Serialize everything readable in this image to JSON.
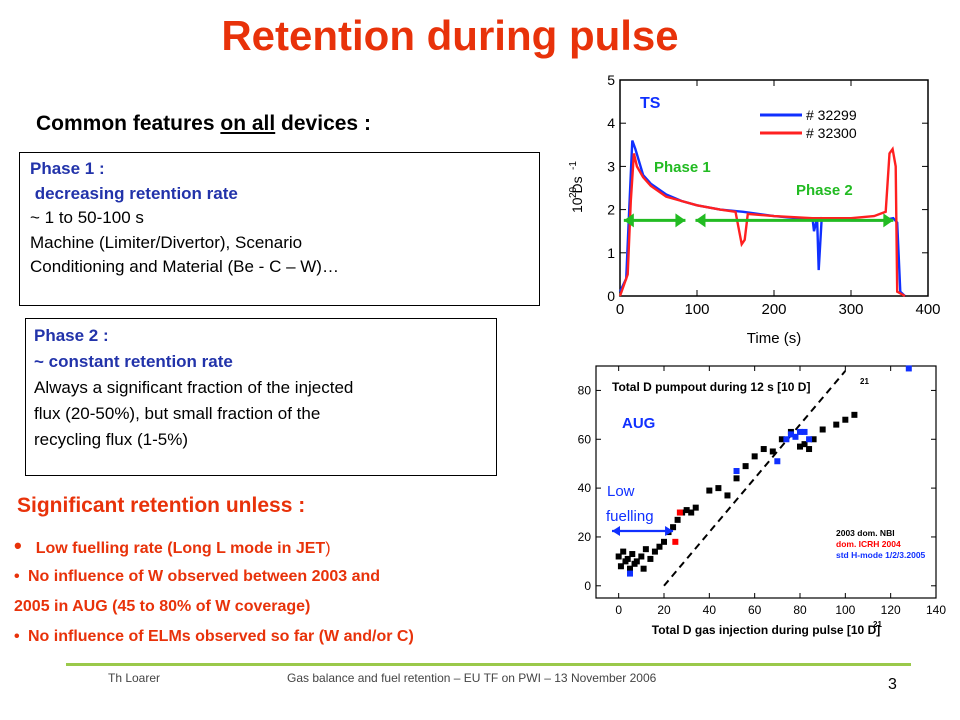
{
  "title": "Retention during pulse",
  "common_features": {
    "prefix": "Common features ",
    "underlined": "on all",
    "suffix": " devices :"
  },
  "phase1": {
    "heading": "Phase 1 :",
    "subheading": " decreasing retention rate",
    "lines": [
      "~ 1 to 50-100 s",
      "Machine (Limiter/Divertor), Scenario",
      "Conditioning and Material (Be - C – W)…"
    ]
  },
  "phase2": {
    "heading": "Phase 2 :",
    "subheading": "~ constant retention rate",
    "lines": [
      "Always a significant fraction of the injected",
      "flux (20-50%), but small fraction of the",
      "recycling flux (1-5%)"
    ]
  },
  "significant": {
    "heading": "Significant retention unless :",
    "bullet1_main": "Low fuelling rate (Long L mode in ",
    "bullet1_jet": "JET",
    "bullet1_end": ")",
    "bullet2_line1": "No influence of W observed between 2003 and",
    "bullet2_line2": "2005 in AUG (45 to 80% of W coverage)",
    "bullet3": "No influence of ELMs observed so far (W and/or C)"
  },
  "footer": {
    "author": "Th Loarer",
    "event": "Gas balance and fuel retention – EU TF on PWI – 13 November 2006",
    "page": "3"
  },
  "colors": {
    "title_red": "#e8320a",
    "phase_blue": "#2233aa",
    "footer_green": "#9ac94a",
    "ts_blue": "#1030ff",
    "ts_red": "#ff2020",
    "arrow_green": "#22bb22"
  },
  "chart_data": [
    {
      "type": "line",
      "device_label": "TS",
      "xlabel": "Time (s)",
      "ylabel_text": "10 Ds",
      "ylabel_exp1": "20",
      "ylabel_exp2": "-1",
      "xlim": [
        0,
        400
      ],
      "ylim": [
        0,
        5
      ],
      "x_ticks": [
        "0",
        "100",
        "200",
        "300",
        "400"
      ],
      "y_ticks": [
        "0",
        "1",
        "2",
        "3",
        "4",
        "5"
      ],
      "annotations": [
        "Phase 1",
        "Phase 2"
      ],
      "series": [
        {
          "name": "# 32299",
          "color": "#1030ff",
          "points": [
            [
              0,
              0.1
            ],
            [
              8,
              0.4
            ],
            [
              12,
              2.0
            ],
            [
              16,
              3.6
            ],
            [
              20,
              3.4
            ],
            [
              30,
              2.8
            ],
            [
              40,
              2.6
            ],
            [
              60,
              2.35
            ],
            [
              80,
              2.2
            ],
            [
              100,
              2.1
            ],
            [
              130,
              2.0
            ],
            [
              160,
              1.95
            ],
            [
              200,
              1.85
            ],
            [
              230,
              1.8
            ],
            [
              250,
              1.8
            ],
            [
              252,
              1.5
            ],
            [
              256,
              1.8
            ],
            [
              258,
              0.6
            ],
            [
              262,
              1.8
            ],
            [
              300,
              1.75
            ],
            [
              340,
              1.75
            ],
            [
              355,
              1.8
            ],
            [
              360,
              1.7
            ],
            [
              364,
              0.1
            ],
            [
              370,
              0.0
            ]
          ]
        },
        {
          "name": "# 32300",
          "color": "#ff2020",
          "points": [
            [
              0,
              0.0
            ],
            [
              10,
              0.5
            ],
            [
              14,
              2.2
            ],
            [
              18,
              3.3
            ],
            [
              22,
              3.0
            ],
            [
              30,
              2.75
            ],
            [
              40,
              2.55
            ],
            [
              60,
              2.3
            ],
            [
              80,
              2.2
            ],
            [
              100,
              2.1
            ],
            [
              130,
              2.0
            ],
            [
              150,
              1.95
            ],
            [
              158,
              1.2
            ],
            [
              162,
              1.3
            ],
            [
              166,
              1.9
            ],
            [
              200,
              1.85
            ],
            [
              250,
              1.8
            ],
            [
              300,
              1.8
            ],
            [
              330,
              1.85
            ],
            [
              345,
              1.95
            ],
            [
              350,
              3.3
            ],
            [
              354,
              3.4
            ],
            [
              358,
              3.0
            ],
            [
              360,
              0.1
            ],
            [
              370,
              0.0
            ]
          ]
        }
      ]
    },
    {
      "type": "scatter",
      "device_label": "AUG",
      "title": "Total D pumpout during 12 s  [10  D]",
      "title_exp": "21",
      "xlabel": "Total D gas injection during pulse  [10  D]",
      "xlabel_exp": "21",
      "xlim": [
        -10,
        140
      ],
      "ylim": [
        -5,
        90
      ],
      "x_ticks": [
        "0",
        "20",
        "40",
        "60",
        "80",
        "100",
        "120",
        "140"
      ],
      "y_ticks": [
        "0",
        "20",
        "40",
        "60",
        "80"
      ],
      "annotation": "Low fuelling",
      "legend": [
        "2003 dom. NBI",
        "dom. ICRH 2004",
        "std H-mode 1/2/3.2005"
      ],
      "legend_colors": [
        "#000000",
        "#ff0000",
        "#1030ff"
      ],
      "series": [
        {
          "name": "2003 dom. NBI",
          "color": "#000000",
          "points": [
            [
              0,
              12
            ],
            [
              1,
              8
            ],
            [
              2,
              14
            ],
            [
              3,
              10
            ],
            [
              4,
              11
            ],
            [
              5,
              7
            ],
            [
              6,
              13
            ],
            [
              7,
              9
            ],
            [
              8,
              10
            ],
            [
              10,
              12
            ],
            [
              11,
              7
            ],
            [
              12,
              15
            ],
            [
              14,
              11
            ],
            [
              16,
              14
            ],
            [
              18,
              16
            ],
            [
              20,
              18
            ],
            [
              22,
              22
            ],
            [
              24,
              24
            ],
            [
              26,
              27
            ],
            [
              28,
              30
            ],
            [
              30,
              31
            ],
            [
              32,
              30
            ],
            [
              34,
              32
            ],
            [
              40,
              39
            ],
            [
              44,
              40
            ],
            [
              48,
              37
            ],
            [
              52,
              44
            ],
            [
              56,
              49
            ],
            [
              60,
              53
            ],
            [
              64,
              56
            ],
            [
              68,
              55
            ],
            [
              72,
              60
            ],
            [
              76,
              63
            ],
            [
              80,
              57
            ],
            [
              82,
              58
            ],
            [
              84,
              56
            ],
            [
              86,
              60
            ],
            [
              90,
              64
            ],
            [
              96,
              66
            ],
            [
              100,
              68
            ],
            [
              104,
              70
            ]
          ]
        },
        {
          "name": "dom. ICRH 2004",
          "color": "#ff0000",
          "points": [
            [
              25,
              18
            ],
            [
              27,
              30
            ]
          ]
        },
        {
          "name": "std H-mode 1/2/3.2005",
          "color": "#1030ff",
          "points": [
            [
              5,
              5
            ],
            [
              52,
              47
            ],
            [
              70,
              51
            ],
            [
              74,
              60
            ],
            [
              76,
              62
            ],
            [
              78,
              61
            ],
            [
              80,
              63
            ],
            [
              82,
              63
            ],
            [
              84,
              60
            ],
            [
              128,
              89
            ]
          ]
        }
      ]
    }
  ]
}
